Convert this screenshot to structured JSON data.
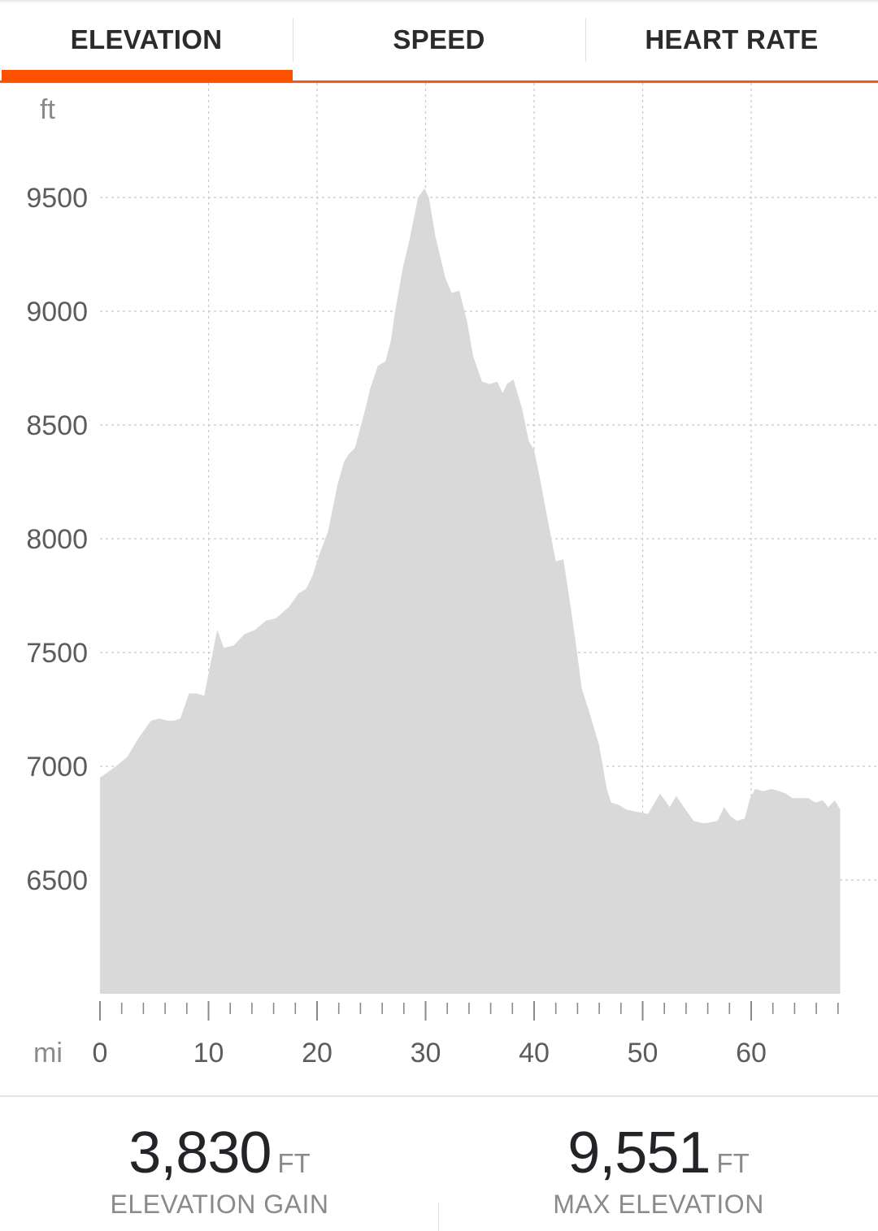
{
  "tabs": [
    {
      "label": "ELEVATION",
      "active": true
    },
    {
      "label": "SPEED",
      "active": false
    },
    {
      "label": "HEART RATE",
      "active": false
    }
  ],
  "colors": {
    "accent": "#fc5200",
    "area": "#d9d9d9",
    "grid": "#c8c8c8",
    "text": "#242428",
    "muted": "#8a8a8a"
  },
  "chart_data": {
    "type": "area",
    "y_unit": "ft",
    "x_unit": "mi",
    "grid": true,
    "xlim": [
      0,
      68
    ],
    "ylim": [
      6000,
      9750
    ],
    "y_ticks": [
      6500,
      7000,
      7500,
      8000,
      8500,
      9000,
      9500
    ],
    "x_ticks": [
      0,
      10,
      20,
      30,
      40,
      50,
      60
    ],
    "x_minor_step": 2,
    "x_minor_max": 68,
    "series": [
      {
        "x": [
          0,
          1.2,
          2.5,
          3.5,
          4.7,
          5.5,
          6.2,
          6.8,
          7.4,
          8.2,
          8.9,
          9.6,
          10.3,
          10.8,
          11.4,
          12.3,
          13.3,
          14.3,
          15.3,
          16.2,
          17.4,
          18.3,
          19.0,
          19.6,
          20.2,
          21.0,
          21.9,
          22.5,
          22.9,
          23.5,
          24.5,
          24.9,
          25.6,
          26.3,
          26.8,
          27.2,
          27.9,
          28.5,
          29.3,
          29.9,
          30.3,
          30.9,
          31.8,
          32.4,
          33.1,
          33.8,
          34.4,
          35.2,
          35.9,
          36.6,
          37.1,
          37.5,
          38.1,
          38.9,
          39.5,
          40.0,
          40.6,
          41.1,
          42.0,
          42.7,
          43.3,
          43.9,
          44.4,
          45.2,
          46.0,
          46.7,
          47.1,
          47.8,
          48.5,
          49.4,
          50.5,
          51.6,
          52.5,
          53.1,
          53.8,
          54.7,
          55.5,
          55.9,
          56.9,
          57.5,
          58.1,
          58.7,
          59.4,
          59.9,
          60.4,
          61.1,
          61.9,
          62.6,
          63.2,
          63.8,
          64.5,
          65.3,
          65.9,
          66.6,
          67.1,
          67.7,
          68.2
        ],
        "values": [
          6950,
          6990,
          7040,
          7120,
          7200,
          7210,
          7200,
          7200,
          7210,
          7320,
          7320,
          7310,
          7480,
          7600,
          7520,
          7530,
          7580,
          7600,
          7640,
          7650,
          7700,
          7760,
          7780,
          7840,
          7930,
          8030,
          8240,
          8340,
          8370,
          8400,
          8580,
          8660,
          8760,
          8780,
          8870,
          9000,
          9190,
          9310,
          9500,
          9540,
          9500,
          9330,
          9150,
          9080,
          9090,
          8960,
          8800,
          8690,
          8680,
          8690,
          8640,
          8680,
          8700,
          8570,
          8430,
          8390,
          8250,
          8120,
          7900,
          7910,
          7720,
          7520,
          7340,
          7220,
          7090,
          6900,
          6840,
          6830,
          6810,
          6800,
          6790,
          6880,
          6820,
          6870,
          6820,
          6760,
          6750,
          6750,
          6760,
          6820,
          6780,
          6760,
          6770,
          6860,
          6900,
          6890,
          6900,
          6890,
          6880,
          6860,
          6860,
          6860,
          6840,
          6850,
          6820,
          6850,
          6810
        ]
      }
    ]
  },
  "stats": {
    "gain": {
      "value": "3,830",
      "unit": "FT",
      "label": "ELEVATION GAIN"
    },
    "max": {
      "value": "9,551",
      "unit": "FT",
      "label": "MAX ELEVATION"
    }
  }
}
